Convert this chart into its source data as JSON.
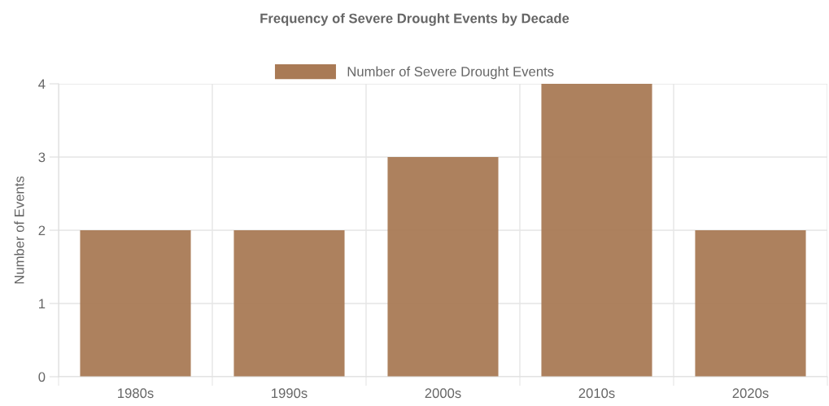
{
  "chart_data": {
    "type": "bar",
    "title": "Frequency of Severe Drought Events by Decade",
    "ylabel": "Number of Events",
    "categories": [
      "1980s",
      "1990s",
      "2000s",
      "2010s",
      "2020s"
    ],
    "series": [
      {
        "name": "Number of Severe Drought Events",
        "color": "#a97a55",
        "values": [
          2,
          2,
          3,
          4,
          2
        ]
      }
    ],
    "ylim": [
      0,
      4
    ],
    "yticks": [
      0,
      1,
      2,
      3,
      4
    ],
    "grid": true,
    "legend": "top"
  }
}
